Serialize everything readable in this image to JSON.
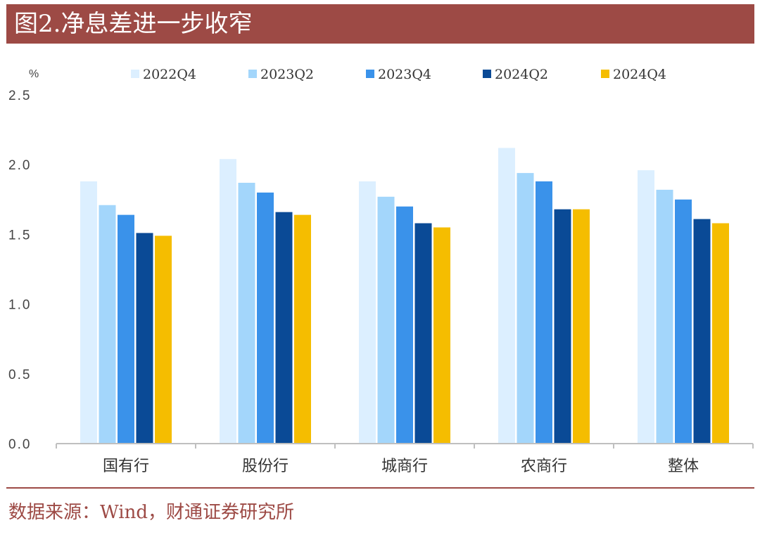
{
  "header": {
    "title": "图2.净息差进一步收窄"
  },
  "footer": {
    "source": "数据来源：Wind，财通证券研究所"
  },
  "colors": {
    "title_bg": "#9d4a45",
    "series": [
      "#dcefff",
      "#a3d6fb",
      "#3a92ea",
      "#0a4a96",
      "#f5bd00"
    ]
  },
  "chart_data": {
    "type": "bar",
    "unit_label": "%",
    "categories": [
      "国有行",
      "股份行",
      "城商行",
      "农商行",
      "整体"
    ],
    "series": [
      {
        "name": "2022Q4",
        "values": [
          1.88,
          2.04,
          1.88,
          2.12,
          1.96
        ]
      },
      {
        "name": "2023Q2",
        "values": [
          1.71,
          1.87,
          1.77,
          1.94,
          1.82
        ]
      },
      {
        "name": "2023Q4",
        "values": [
          1.64,
          1.8,
          1.7,
          1.88,
          1.75
        ]
      },
      {
        "name": "2024Q2",
        "values": [
          1.51,
          1.66,
          1.58,
          1.68,
          1.61
        ]
      },
      {
        "name": "2024Q4",
        "values": [
          1.49,
          1.64,
          1.55,
          1.68,
          1.58
        ]
      }
    ],
    "ylim": [
      0,
      2.5
    ],
    "yticks": [
      "0.0",
      "0.5",
      "1.0",
      "1.5",
      "2.0",
      "2.5"
    ],
    "grid": false,
    "legend_position": "top"
  }
}
